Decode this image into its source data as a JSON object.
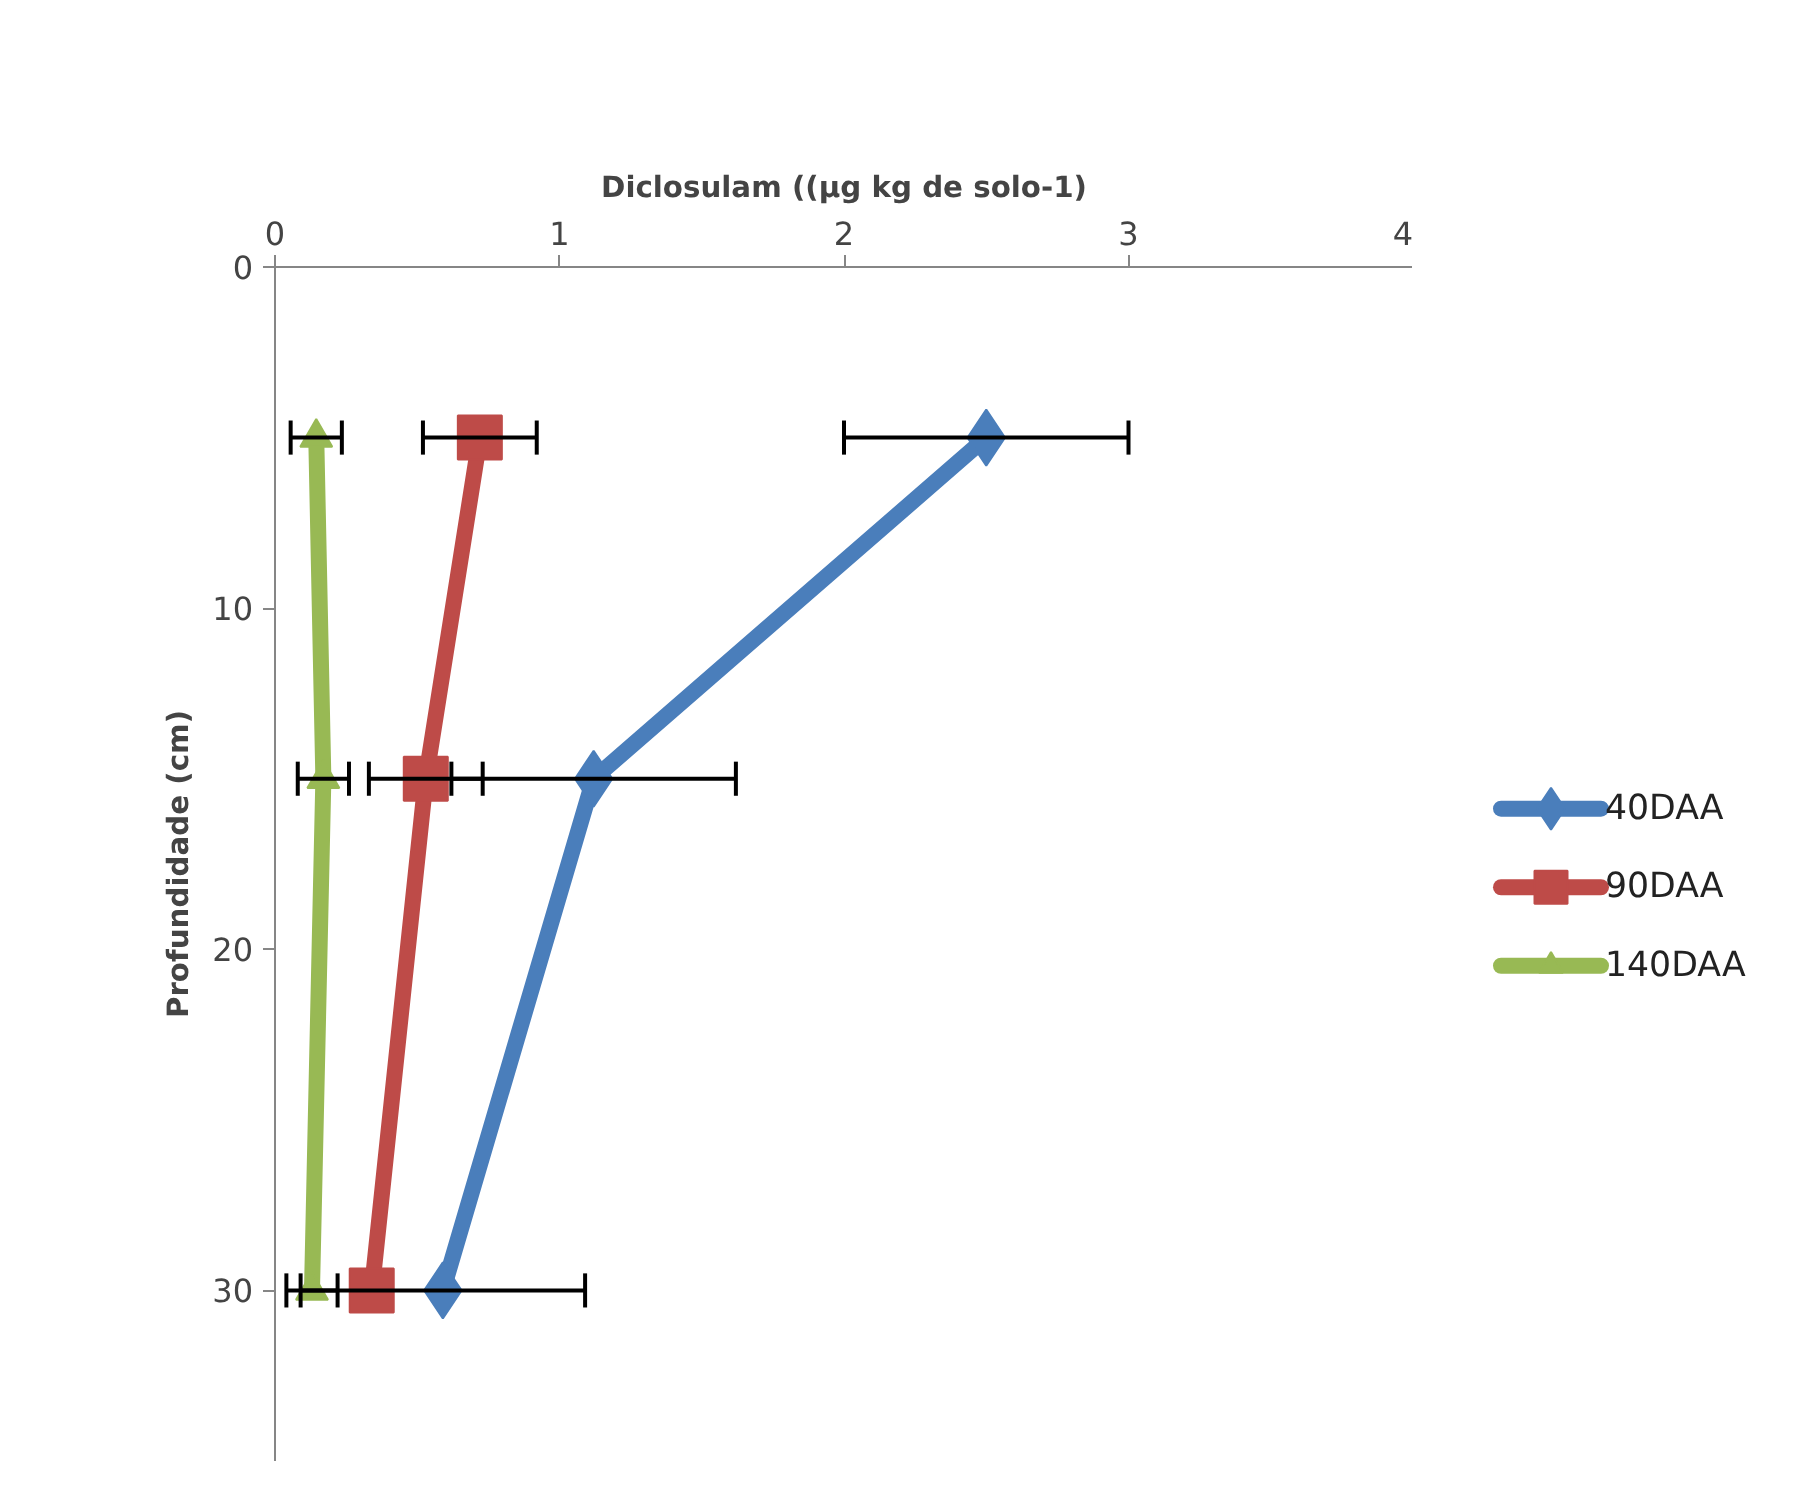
{
  "chart_data": {
    "type": "line",
    "xlabel": "Diclosulam ((µg kg de solo-1)",
    "ylabel": "Profundidade (cm)",
    "xlim": [
      0,
      4
    ],
    "xticks": [
      0,
      1,
      2,
      3,
      4
    ],
    "ylim": [
      35,
      0
    ],
    "yticks": [
      0,
      10,
      20,
      30
    ],
    "grid": false,
    "legend": "right",
    "series": [
      {
        "name": "40DAA",
        "color": "#4a7ebb",
        "marker": "diamond",
        "x": [
          2.5,
          1.12,
          0.59
        ],
        "values": [
          5,
          15,
          30
        ],
        "xerrors": [
          0.5,
          0.5,
          0.5
        ]
      },
      {
        "name": "90DAA",
        "color": "#be4b48",
        "marker": "square",
        "x": [
          0.72,
          0.53,
          0.34
        ],
        "values": [
          5,
          15,
          30
        ],
        "xerrors": [
          0.2,
          0.2,
          null
        ]
      },
      {
        "name": "140DAA",
        "color": "#98b954",
        "marker": "triangle",
        "x": [
          0.145,
          0.17,
          0.13
        ],
        "values": [
          5,
          15,
          30
        ],
        "xerrors": [
          0.09,
          0.09,
          0.09
        ]
      }
    ]
  }
}
